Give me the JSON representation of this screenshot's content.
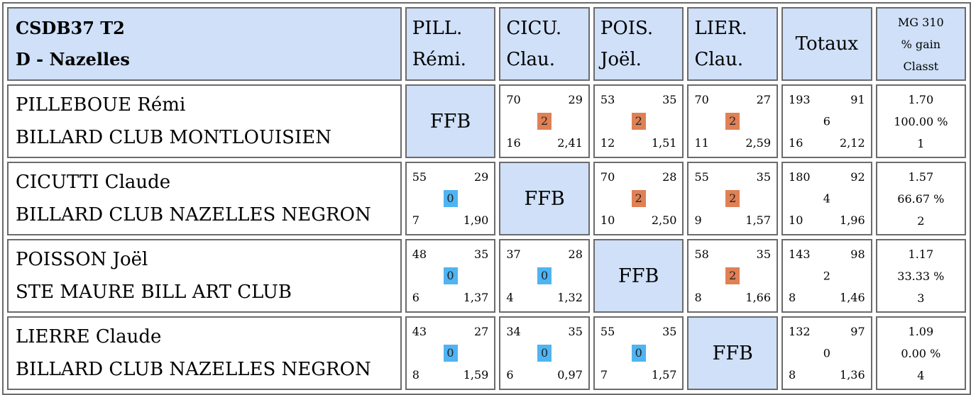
{
  "header": {
    "title_line1": "CSDB37 T2",
    "title_line2": "D - Nazelles",
    "columns": [
      {
        "line1": "PILL.",
        "line2": "Rémi."
      },
      {
        "line1": "CICU.",
        "line2": "Clau."
      },
      {
        "line1": "POIS.",
        "line2": "Joël."
      },
      {
        "line1": "LIER.",
        "line2": "Clau."
      }
    ],
    "totaux": "Totaux",
    "mg_line1": "MG 310",
    "mg_line2": "% gain",
    "mg_line3": "Classt"
  },
  "self_label": "FFB",
  "rows": [
    {
      "name": "PILLEBOUE Rémi",
      "club": "BILLARD CLUB MONTLOUISIEN",
      "results": [
        null,
        {
          "points": "70",
          "reprises": "29",
          "match_pts": "2",
          "serie": "16",
          "moyenne": "2,41"
        },
        {
          "points": "53",
          "reprises": "35",
          "match_pts": "2",
          "serie": "12",
          "moyenne": "1,51"
        },
        {
          "points": "70",
          "reprises": "27",
          "match_pts": "2",
          "serie": "11",
          "moyenne": "2,59"
        }
      ],
      "totals": {
        "points": "193",
        "reprises": "91",
        "match_pts": "6",
        "serie": "16",
        "moyenne": "2,12"
      },
      "mg": {
        "value": "1.70",
        "gain": "100.00 %",
        "rank": "1"
      }
    },
    {
      "name": "CICUTTI Claude",
      "club": "BILLARD CLUB NAZELLES NEGRON",
      "results": [
        {
          "points": "55",
          "reprises": "29",
          "match_pts": "0",
          "serie": "7",
          "moyenne": "1,90"
        },
        null,
        {
          "points": "70",
          "reprises": "28",
          "match_pts": "2",
          "serie": "10",
          "moyenne": "2,50"
        },
        {
          "points": "55",
          "reprises": "35",
          "match_pts": "2",
          "serie": "9",
          "moyenne": "1,57"
        }
      ],
      "totals": {
        "points": "180",
        "reprises": "92",
        "match_pts": "4",
        "serie": "10",
        "moyenne": "1,96"
      },
      "mg": {
        "value": "1.57",
        "gain": "66.67 %",
        "rank": "2"
      }
    },
    {
      "name": "POISSON Joël",
      "club": "STE MAURE BILL ART CLUB",
      "results": [
        {
          "points": "48",
          "reprises": "35",
          "match_pts": "0",
          "serie": "6",
          "moyenne": "1,37"
        },
        {
          "points": "37",
          "reprises": "28",
          "match_pts": "0",
          "serie": "4",
          "moyenne": "1,32"
        },
        null,
        {
          "points": "58",
          "reprises": "35",
          "match_pts": "2",
          "serie": "8",
          "moyenne": "1,66"
        }
      ],
      "totals": {
        "points": "143",
        "reprises": "98",
        "match_pts": "2",
        "serie": "8",
        "moyenne": "1,46"
      },
      "mg": {
        "value": "1.17",
        "gain": "33.33 %",
        "rank": "3"
      }
    },
    {
      "name": "LIERRE Claude",
      "club": "BILLARD CLUB NAZELLES NEGRON",
      "results": [
        {
          "points": "43",
          "reprises": "27",
          "match_pts": "0",
          "serie": "8",
          "moyenne": "1,59"
        },
        {
          "points": "34",
          "reprises": "35",
          "match_pts": "0",
          "serie": "6",
          "moyenne": "0,97"
        },
        {
          "points": "55",
          "reprises": "35",
          "match_pts": "0",
          "serie": "7",
          "moyenne": "1,57"
        },
        null
      ],
      "totals": {
        "points": "132",
        "reprises": "97",
        "match_pts": "0",
        "serie": "8",
        "moyenne": "1,36"
      },
      "mg": {
        "value": "1.09",
        "gain": "0.00 %",
        "rank": "4"
      }
    }
  ],
  "colors": {
    "header_bg": "#cfe0f8",
    "win_badge": "#e08055",
    "loss_badge": "#4fb4f2",
    "border": "#6b6b6b"
  }
}
